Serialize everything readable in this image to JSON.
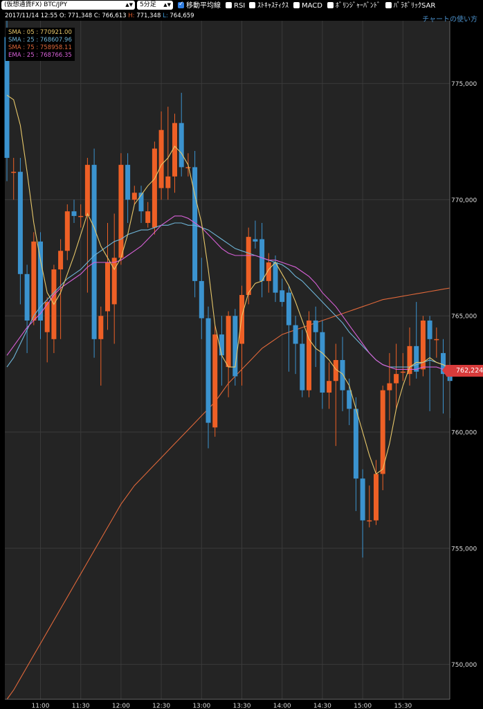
{
  "toolbar": {
    "symbol_select": "(仮想通貨FX) BTC/JPY",
    "interval_select": "5分足",
    "options": [
      {
        "label": "移動平均線",
        "checked": true
      },
      {
        "label": "RSI",
        "checked": false
      },
      {
        "label": "ｽﾄｷｬｽﾃｨｸｽ",
        "checked": false
      },
      {
        "label": "MACD",
        "checked": false
      },
      {
        "label": "ﾎﾞﾘﾝｼﾞｬｰﾊﾞﾝﾄﾞ",
        "checked": false
      },
      {
        "label": "ﾊﾟﾗﾎﾞﾘｯｸSAR",
        "checked": false
      }
    ]
  },
  "info": {
    "datetime": "2017/11/14 12:55",
    "open_label": "O:",
    "open": "771,348",
    "close_label": "C:",
    "close": "766,613",
    "high_label": "H:",
    "high": "771,348",
    "low_label": "L:",
    "low": "764,659"
  },
  "help_link": "チャートの使い方",
  "legend": [
    {
      "text": "SMA : 05 : 770921.00",
      "color": "#e8c86a"
    },
    {
      "text": "SMA : 25 : 768607.96",
      "color": "#6fb6d9"
    },
    {
      "text": "SMA : 75 : 758958.11",
      "color": "#e0683a"
    },
    {
      "text": "EMA : 25 : 768766.35",
      "color": "#d861d8"
    }
  ],
  "current_price": "762,224",
  "colors": {
    "up": "#ee6026",
    "down": "#3b93cf",
    "grid": "#3a3a3a",
    "bg": "#242424"
  },
  "chart_data": {
    "type": "candlestick",
    "ylim": [
      748500,
      777700
    ],
    "y_ticks": [
      750000,
      755000,
      760000,
      765000,
      770000,
      775000
    ],
    "y_tick_labels": [
      "750,000",
      "755,000",
      "760,000",
      "765,000",
      "770,000",
      "775,000"
    ],
    "x_tick_labels": [
      "11:00",
      "11:30",
      "12:00",
      "12:30",
      "13:00",
      "13:30",
      "14:00",
      "14:30",
      "15:00",
      "15:30"
    ],
    "x_tick_slots": [
      5,
      11,
      17,
      23,
      29,
      35,
      41,
      47,
      53,
      59
    ],
    "candles": [
      {
        "o": 777000,
        "c": 771800,
        "h": 777700,
        "l": 770800
      },
      {
        "o": 771200,
        "c": 771200,
        "h": 771800,
        "l": 770000
      },
      {
        "o": 771200,
        "c": 766800,
        "h": 771800,
        "l": 765500
      },
      {
        "o": 766800,
        "c": 764800,
        "h": 767200,
        "l": 763400
      },
      {
        "o": 764800,
        "c": 768200,
        "h": 768600,
        "l": 764600
      },
      {
        "o": 768200,
        "c": 764800,
        "h": 768600,
        "l": 764000
      },
      {
        "o": 764300,
        "c": 765600,
        "h": 765800,
        "l": 763000
      },
      {
        "o": 764000,
        "c": 767000,
        "h": 767200,
        "l": 763400
      },
      {
        "o": 767000,
        "c": 767800,
        "h": 768300,
        "l": 764000
      },
      {
        "o": 767800,
        "c": 769500,
        "h": 769800,
        "l": 767400
      },
      {
        "o": 769500,
        "c": 769300,
        "h": 770000,
        "l": 769000
      },
      {
        "o": 769300,
        "c": 769300,
        "h": 769800,
        "l": 768800
      },
      {
        "o": 769300,
        "c": 771500,
        "h": 771800,
        "l": 766000
      },
      {
        "o": 771500,
        "c": 764000,
        "h": 772200,
        "l": 763200
      },
      {
        "o": 764000,
        "c": 765000,
        "h": 765400,
        "l": 762000
      },
      {
        "o": 765200,
        "c": 767300,
        "h": 769000,
        "l": 764400
      },
      {
        "o": 765500,
        "c": 767500,
        "h": 769400,
        "l": 763800
      },
      {
        "o": 767500,
        "c": 771500,
        "h": 772000,
        "l": 767200
      },
      {
        "o": 771500,
        "c": 770000,
        "h": 772000,
        "l": 769000
      },
      {
        "o": 770000,
        "c": 770300,
        "h": 770600,
        "l": 769800
      },
      {
        "o": 770300,
        "c": 769500,
        "h": 770600,
        "l": 769000
      },
      {
        "o": 769000,
        "c": 769500,
        "h": 769900,
        "l": 768800
      },
      {
        "o": 768800,
        "c": 772200,
        "h": 772500,
        "l": 768500
      },
      {
        "o": 770500,
        "c": 773000,
        "h": 773800,
        "l": 770000
      },
      {
        "o": 770500,
        "c": 771000,
        "h": 774000,
        "l": 770000
      },
      {
        "o": 771000,
        "c": 773300,
        "h": 773700,
        "l": 770300
      },
      {
        "o": 773300,
        "c": 771400,
        "h": 774600,
        "l": 771000
      },
      {
        "o": 771400,
        "c": 771400,
        "h": 772000,
        "l": 771000
      },
      {
        "o": 771400,
        "c": 766500,
        "h": 772100,
        "l": 765800
      },
      {
        "o": 766500,
        "c": 764900,
        "h": 767500,
        "l": 764000
      },
      {
        "o": 764900,
        "c": 760400,
        "h": 765400,
        "l": 759300
      },
      {
        "o": 760200,
        "c": 764200,
        "h": 764600,
        "l": 759800
      },
      {
        "o": 764200,
        "c": 763300,
        "h": 765000,
        "l": 762000
      },
      {
        "o": 762800,
        "c": 765000,
        "h": 765200,
        "l": 761500
      },
      {
        "o": 765000,
        "c": 762400,
        "h": 765300,
        "l": 762000
      },
      {
        "o": 763800,
        "c": 765900,
        "h": 766300,
        "l": 762000
      },
      {
        "o": 765900,
        "c": 768400,
        "h": 768800,
        "l": 765500
      },
      {
        "o": 768300,
        "c": 768200,
        "h": 769100,
        "l": 767900
      },
      {
        "o": 768300,
        "c": 766500,
        "h": 769000,
        "l": 765800
      },
      {
        "o": 766500,
        "c": 767300,
        "h": 767700,
        "l": 766000
      },
      {
        "o": 767300,
        "c": 766000,
        "h": 767600,
        "l": 765600
      },
      {
        "o": 766100,
        "c": 765600,
        "h": 766600,
        "l": 765400
      },
      {
        "o": 766000,
        "c": 764600,
        "h": 766300,
        "l": 762600
      },
      {
        "o": 764600,
        "c": 763800,
        "h": 765000,
        "l": 762500
      },
      {
        "o": 763800,
        "c": 761800,
        "h": 764400,
        "l": 761500
      },
      {
        "o": 761800,
        "c": 764800,
        "h": 765200,
        "l": 761500
      },
      {
        "o": 764800,
        "c": 764300,
        "h": 765400,
        "l": 762800
      },
      {
        "o": 764300,
        "c": 761700,
        "h": 764800,
        "l": 761000
      },
      {
        "o": 761700,
        "c": 762200,
        "h": 763000,
        "l": 761000
      },
      {
        "o": 762200,
        "c": 763100,
        "h": 763800,
        "l": 759400
      },
      {
        "o": 763100,
        "c": 761800,
        "h": 764100,
        "l": 760900
      },
      {
        "o": 761800,
        "c": 761000,
        "h": 762300,
        "l": 760300
      },
      {
        "o": 761000,
        "c": 758000,
        "h": 761500,
        "l": 756600
      },
      {
        "o": 758000,
        "c": 756200,
        "h": 758400,
        "l": 754600
      },
      {
        "o": 756200,
        "c": 756200,
        "h": 757700,
        "l": 755900
      },
      {
        "o": 756200,
        "c": 758200,
        "h": 758800,
        "l": 756000
      },
      {
        "o": 758200,
        "c": 761800,
        "h": 762000,
        "l": 757500
      },
      {
        "o": 761800,
        "c": 762100,
        "h": 763400,
        "l": 760500
      },
      {
        "o": 762100,
        "c": 762500,
        "h": 763800,
        "l": 761000
      },
      {
        "o": 762600,
        "c": 762600,
        "h": 763400,
        "l": 762200
      },
      {
        "o": 762500,
        "c": 763700,
        "h": 764500,
        "l": 762000
      },
      {
        "o": 763700,
        "c": 762600,
        "h": 765600,
        "l": 762300
      },
      {
        "o": 762700,
        "c": 764800,
        "h": 765000,
        "l": 762400
      },
      {
        "o": 764800,
        "c": 764000,
        "h": 765000,
        "l": 760900
      },
      {
        "o": 764000,
        "c": 764000,
        "h": 764500,
        "l": 763200
      },
      {
        "o": 763400,
        "c": 762500,
        "h": 764000,
        "l": 760800
      },
      {
        "o": 762500,
        "c": 762200,
        "h": 763000,
        "l": 760600
      }
    ],
    "series": [
      {
        "name": "SMA : 05",
        "color": "#e8c86a",
        "values": [
          774500,
          774300,
          773200,
          771200,
          769000,
          767400,
          766000,
          765500,
          766000,
          766800,
          767600,
          768500,
          769400,
          768800,
          768000,
          767500,
          767000,
          767500,
          768500,
          769800,
          770200,
          770600,
          770900,
          771500,
          771800,
          772300,
          772000,
          771500,
          770200,
          769000,
          767000,
          764600,
          763300,
          762800,
          762800,
          765000,
          766000,
          766400,
          766500,
          767000,
          767300,
          766800,
          766300,
          765600,
          764800,
          764000,
          763600,
          763400,
          763100,
          762700,
          762500,
          762000,
          761000,
          760000,
          759000,
          758200,
          758400,
          759500,
          761000,
          762000,
          762800,
          763000,
          763000,
          763200,
          763000,
          762900,
          762700
        ]
      },
      {
        "name": "SMA : 25",
        "color": "#6fb6d9",
        "values": [
          762800,
          763200,
          763800,
          764400,
          765000,
          765400,
          765700,
          766000,
          766300,
          766600,
          766800,
          767000,
          767300,
          767600,
          767800,
          768000,
          768200,
          768300,
          768500,
          768600,
          768700,
          768700,
          768800,
          768900,
          768900,
          769000,
          769000,
          768900,
          768900,
          768800,
          768700,
          768500,
          768300,
          768100,
          767900,
          767800,
          767700,
          767600,
          767500,
          767400,
          767300,
          767200,
          767000,
          766700,
          766500,
          766200,
          765900,
          765600,
          765300,
          765000,
          764700,
          764300,
          764000,
          763700,
          763400,
          763100,
          762900,
          762800,
          762800,
          762800,
          762800,
          762900,
          763000,
          763100,
          763000,
          762900,
          762800
        ]
      },
      {
        "name": "SMA : 75",
        "color": "#e0683a",
        "values": [
          748500,
          748900,
          749400,
          749900,
          750400,
          750900,
          751400,
          751900,
          752400,
          752900,
          753400,
          753900,
          754400,
          754900,
          755400,
          755900,
          756400,
          756900,
          757300,
          757700,
          758000,
          758300,
          758600,
          758900,
          759200,
          759500,
          759800,
          760100,
          760400,
          760700,
          761000,
          761300,
          761700,
          762100,
          762400,
          762700,
          763000,
          763300,
          763600,
          763800,
          764000,
          764200,
          764300,
          764400,
          764500,
          764600,
          764700,
          764800,
          764900,
          765000,
          765100,
          765200,
          765300,
          765400,
          765500,
          765600,
          765700,
          765750,
          765800,
          765850,
          765900,
          765950,
          766000,
          766050,
          766100,
          766150,
          766200
        ]
      },
      {
        "name": "EMA : 25",
        "color": "#d861d8",
        "values": [
          763300,
          763700,
          764100,
          764500,
          764800,
          765100,
          765500,
          765900,
          766200,
          766400,
          766600,
          766800,
          767100,
          767300,
          767300,
          767300,
          767300,
          767400,
          767600,
          767800,
          768000,
          768300,
          768600,
          768900,
          769100,
          769300,
          769300,
          769200,
          769000,
          768800,
          768500,
          768200,
          767900,
          767700,
          767600,
          767600,
          767600,
          767600,
          767500,
          767400,
          767400,
          767300,
          767200,
          767100,
          766900,
          766700,
          766400,
          766000,
          765700,
          765400,
          765000,
          764600,
          764200,
          763800,
          763400,
          763100,
          762900,
          762800,
          762700,
          762700,
          762700,
          762700,
          762800,
          762800,
          762800,
          762700,
          762600
        ]
      }
    ]
  }
}
